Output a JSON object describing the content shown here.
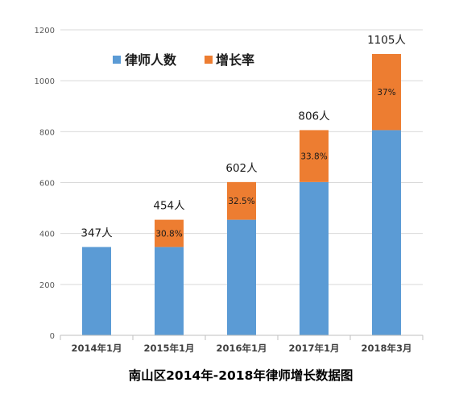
{
  "colors": {
    "primary": "#5B9BD5",
    "secondary": "#ED7D31",
    "grid": "#d9d9d9",
    "axis": "#bfbfbf"
  },
  "chart_data": {
    "type": "bar",
    "stacked": true,
    "title": "南山区2014年-2018年律师增长数据图",
    "xlabel": "",
    "ylabel": "",
    "ylim": [
      0,
      1200
    ],
    "yticks": [
      0,
      200,
      400,
      600,
      800,
      1000,
      1200
    ],
    "grid": true,
    "legend_position": "top-left",
    "categories": [
      "2014年1月",
      "2015年1月",
      "2016年1月",
      "2017年1月",
      "2018年3月"
    ],
    "series": [
      {
        "name": "律师人数",
        "color": "#5B9BD5",
        "values": [
          347,
          347,
          454,
          602,
          806
        ]
      },
      {
        "name": "增长率",
        "color": "#ED7D31",
        "values": [
          0,
          107,
          148,
          204,
          299
        ]
      }
    ],
    "total_labels": [
      "347人",
      "454人",
      "602人",
      "806人",
      "1105人"
    ],
    "rate_labels": [
      "",
      "30.8%",
      "32.5%",
      "33.8%",
      "37%"
    ]
  }
}
